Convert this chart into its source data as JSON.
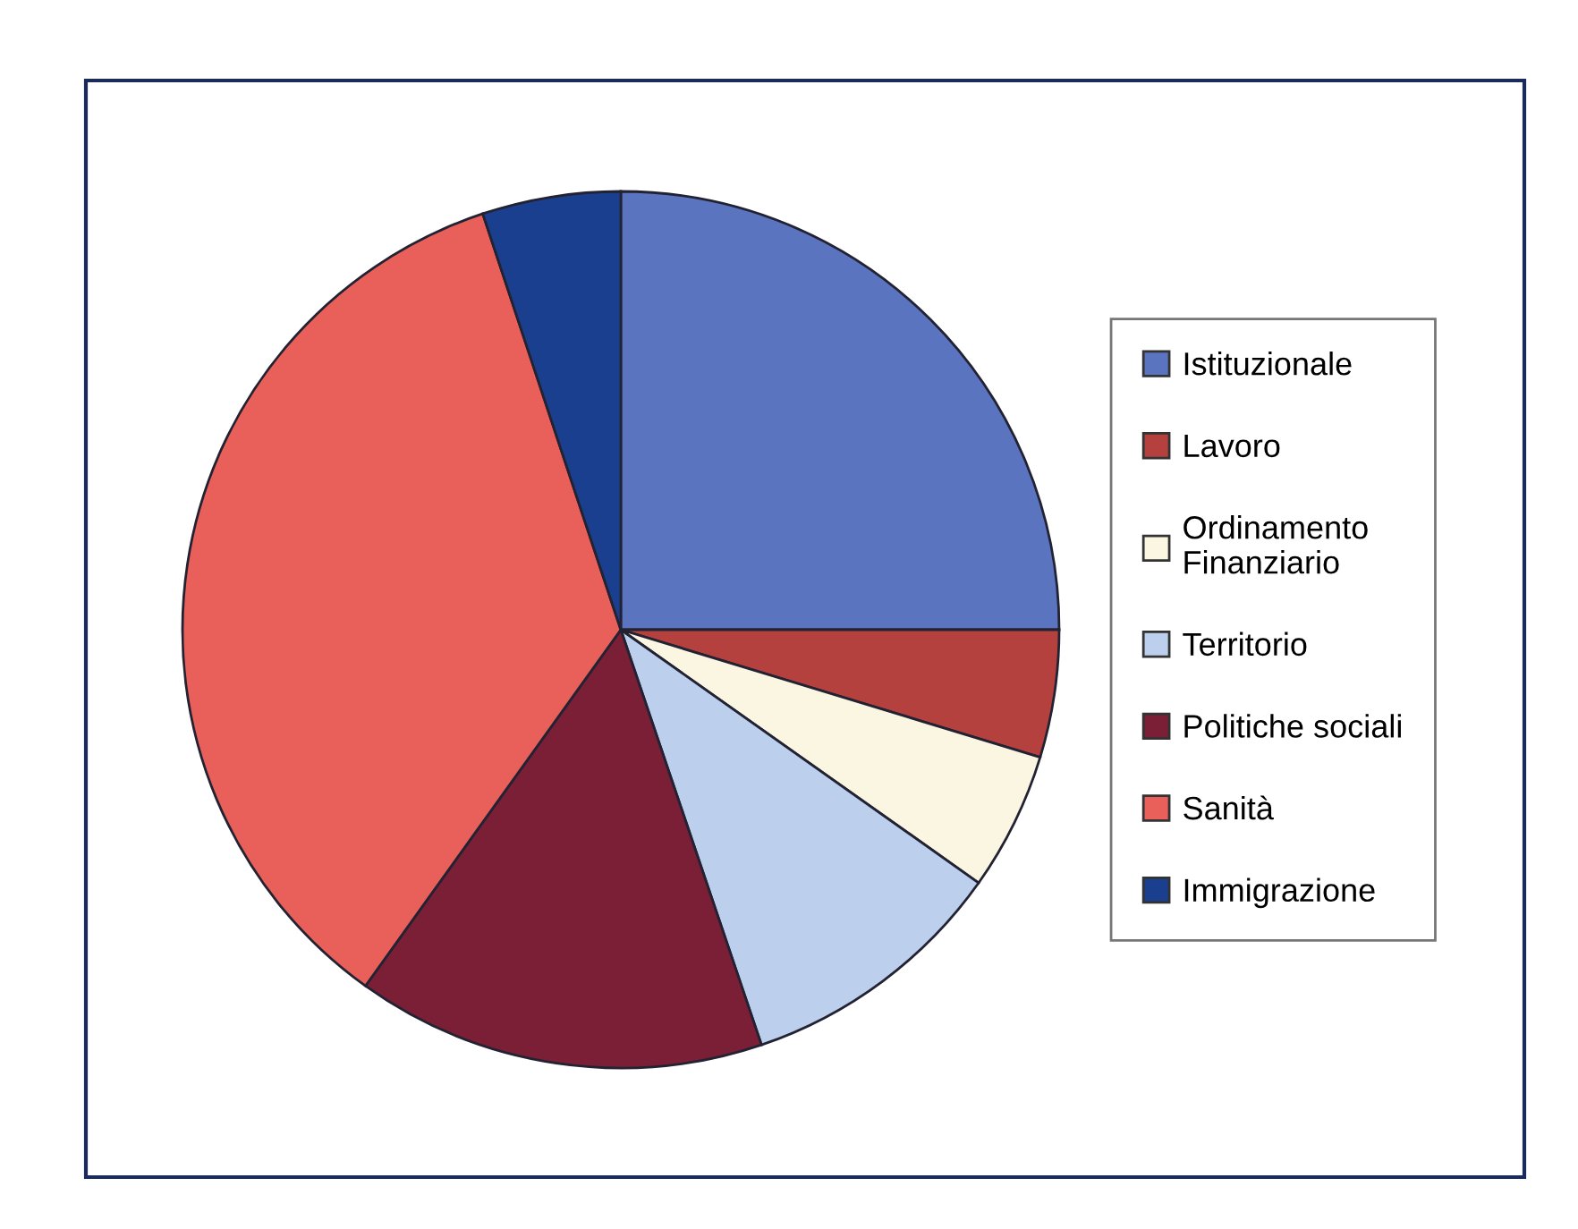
{
  "chart_data": {
    "type": "pie",
    "categories": [
      "Istituzionale",
      "Lavoro",
      "Ordinamento\nFinanziario",
      "Territorio",
      "Politiche sociali",
      "Sanità",
      "Immigrazione"
    ],
    "values": [
      25,
      4.7,
      5.1,
      10,
      15.1,
      35,
      5.1
    ],
    "colors": [
      "#5b74c0",
      "#b5413f",
      "#fbf6e2",
      "#bcd0ee",
      "#7a1f35",
      "#e9605a",
      "#1b3f8f"
    ],
    "legend": "right"
  }
}
